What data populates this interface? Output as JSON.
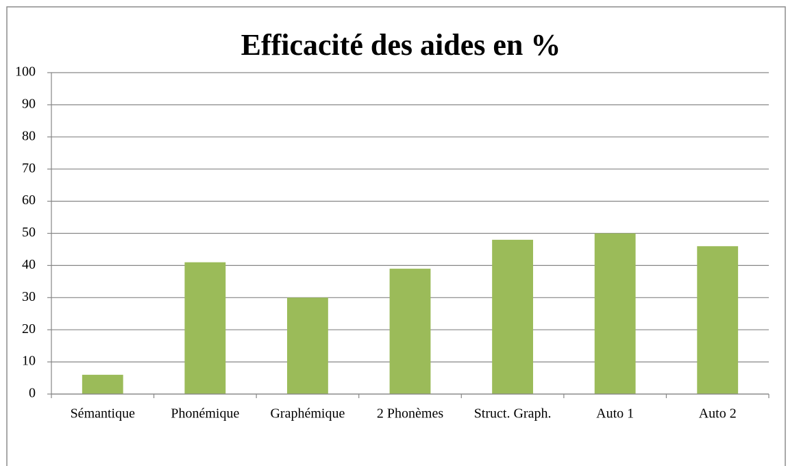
{
  "chart_data": {
    "type": "bar",
    "title": "Efficacité des aides en %",
    "categories": [
      "Sémantique",
      "Phonémique",
      "Graphémique",
      "2 Phonèmes",
      "Struct. Graph.",
      "Auto 1",
      "Auto 2"
    ],
    "values": [
      6,
      41,
      30,
      39,
      48,
      50,
      46
    ],
    "color": "#9bbb59",
    "ylim": [
      0,
      100
    ],
    "yticks": [
      0,
      10,
      20,
      30,
      40,
      50,
      60,
      70,
      80,
      90,
      100
    ],
    "grid": true
  }
}
